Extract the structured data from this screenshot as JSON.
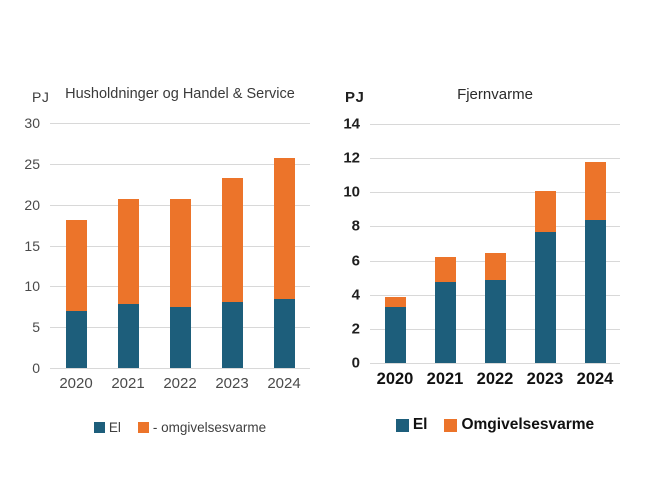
{
  "page": {
    "background": "#FFFFFF"
  },
  "colors": {
    "el": "#1D5E7B",
    "omgivelsesvarme": "#EC742A",
    "gridline": "#D8D8D8",
    "left_chart_text": "#4A4A4A",
    "right_chart_text": "#111111"
  },
  "chart_data": [
    {
      "type": "bar",
      "stacked": true,
      "title": "Husholdninger og Handel & Service",
      "unit_label": "PJ",
      "categories": [
        "2020",
        "2021",
        "2022",
        "2023",
        "2024"
      ],
      "series": [
        {
          "name": "El",
          "color": "#1D5E7B",
          "values": [
            7.0,
            7.8,
            7.5,
            8.1,
            8.5
          ]
        },
        {
          "name": "- omgivelsesvarme",
          "color": "#EC742A",
          "values": [
            11.1,
            12.9,
            13.2,
            15.2,
            17.2
          ]
        }
      ],
      "totals": [
        18.1,
        20.7,
        20.7,
        23.3,
        25.7
      ],
      "xlabel": "",
      "ylabel": "PJ",
      "ylim": [
        0,
        30
      ],
      "yticks": [
        0,
        5,
        10,
        15,
        20,
        25,
        30
      ],
      "grid": true,
      "legend_position": "bottom"
    },
    {
      "type": "bar",
      "stacked": true,
      "title": "Fjernvarme",
      "unit_label": "PJ",
      "categories": [
        "2020",
        "2021",
        "2022",
        "2023",
        "2024"
      ],
      "series": [
        {
          "name": "El",
          "color": "#1D5E7B",
          "values": [
            3.3,
            4.75,
            4.85,
            7.7,
            8.35
          ]
        },
        {
          "name": "Omgivelsesvarme",
          "color": "#EC742A",
          "values": [
            0.55,
            1.45,
            1.6,
            2.35,
            3.4
          ]
        }
      ],
      "totals": [
        3.85,
        6.2,
        6.45,
        10.05,
        11.75
      ],
      "xlabel": "",
      "ylabel": "PJ",
      "ylim": [
        0,
        14
      ],
      "yticks": [
        0,
        2,
        4,
        6,
        8,
        10,
        12,
        14
      ],
      "grid": true,
      "legend_position": "bottom"
    }
  ]
}
